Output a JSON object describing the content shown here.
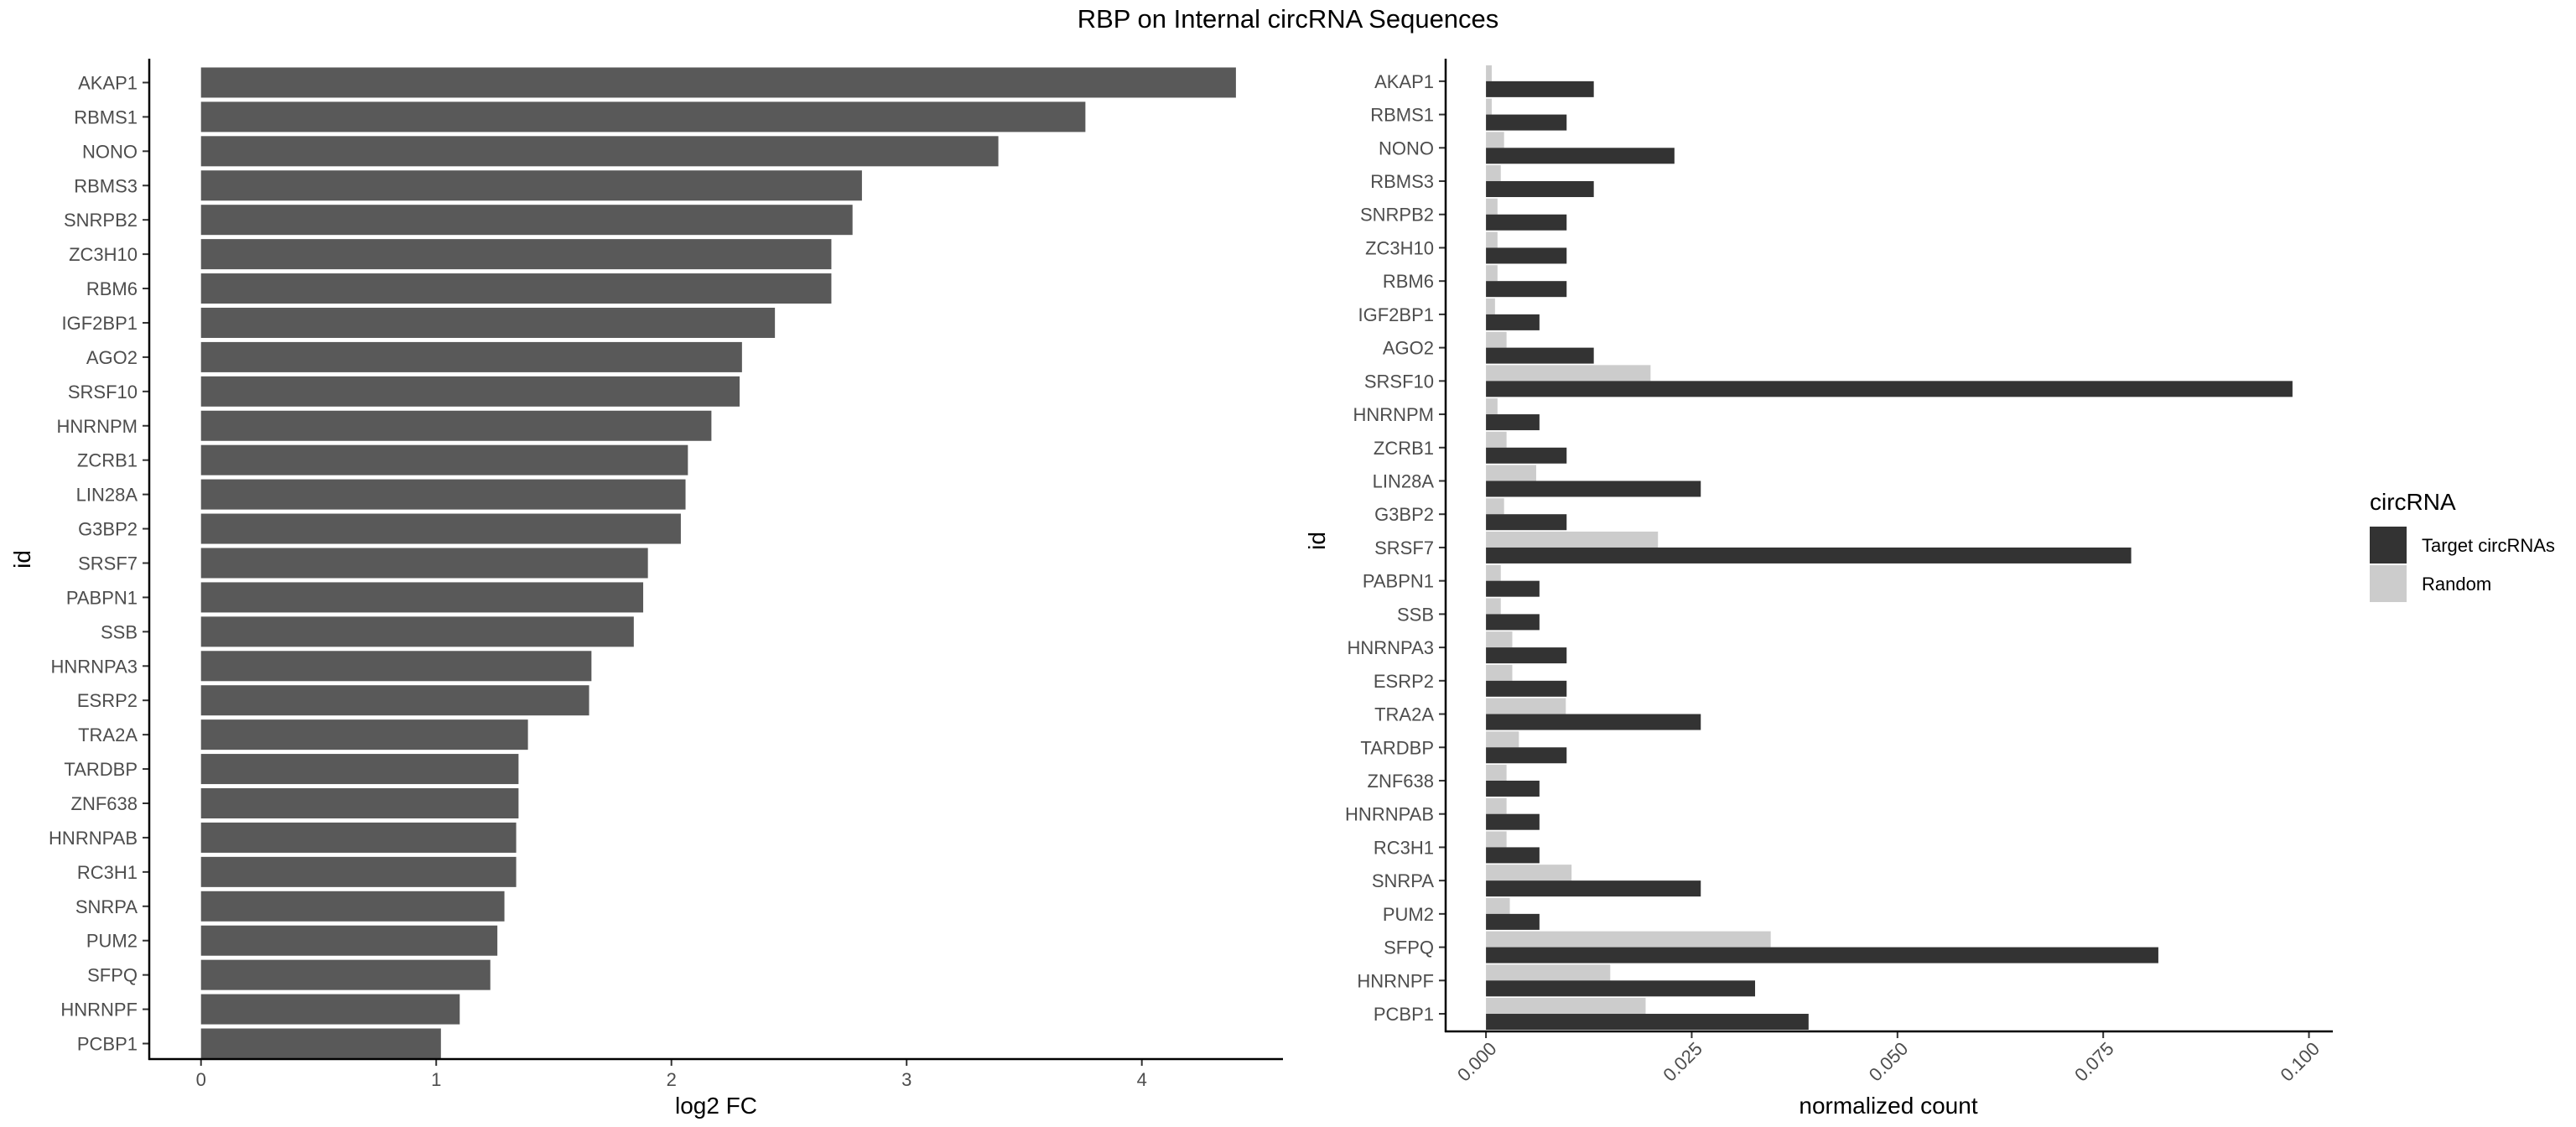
{
  "figure": {
    "title": "RBP on Internal circRNA Sequences"
  },
  "colors": {
    "bar_left": "#595959",
    "target": "#333333",
    "random": "#cccccc",
    "axis": "#000000",
    "tick_text": "#4d4d4d"
  },
  "chart_data": [
    {
      "type": "bar",
      "orientation": "horizontal",
      "categories": [
        "AKAP1",
        "RBMS1",
        "NONO",
        "RBMS3",
        "SNRPB2",
        "ZC3H10",
        "RBM6",
        "IGF2BP1",
        "AGO2",
        "SRSF10",
        "HNRNPM",
        "ZCRB1",
        "LIN28A",
        "G3BP2",
        "SRSF7",
        "PABPN1",
        "SSB",
        "HNRNPA3",
        "ESRP2",
        "TRA2A",
        "TARDBP",
        "ZNF638",
        "HNRNPAB",
        "RC3H1",
        "SNRPA",
        "PUM2",
        "SFPQ",
        "HNRNPF",
        "PCBP1"
      ],
      "values": [
        4.4,
        3.76,
        3.39,
        2.81,
        2.77,
        2.68,
        2.68,
        2.44,
        2.3,
        2.29,
        2.17,
        2.07,
        2.06,
        2.04,
        1.9,
        1.88,
        1.84,
        1.66,
        1.65,
        1.39,
        1.35,
        1.35,
        1.34,
        1.34,
        1.29,
        1.26,
        1.23,
        1.1,
        1.02
      ],
      "xlabel": "log2 FC",
      "ylabel": "id",
      "xlim": [
        -0.22,
        4.6
      ],
      "xticks": [
        "0",
        "1",
        "2",
        "3",
        "4"
      ],
      "xtick_values": [
        0,
        1,
        2,
        3,
        4
      ],
      "grid": false
    },
    {
      "type": "bar",
      "orientation": "horizontal",
      "grouped": true,
      "categories": [
        "AKAP1",
        "RBMS1",
        "NONO",
        "RBMS3",
        "SNRPB2",
        "ZC3H10",
        "RBM6",
        "IGF2BP1",
        "AGO2",
        "SRSF10",
        "HNRNPM",
        "ZCRB1",
        "LIN28A",
        "G3BP2",
        "SRSF7",
        "PABPN1",
        "SSB",
        "HNRNPA3",
        "ESRP2",
        "TRA2A",
        "TARDBP",
        "ZNF638",
        "HNRNPAB",
        "RC3H1",
        "SNRPA",
        "PUM2",
        "SFPQ",
        "HNRNPF",
        "PCBP1"
      ],
      "series": [
        {
          "name": "Target circRNAs",
          "values": [
            0.0131,
            0.0098,
            0.0229,
            0.0131,
            0.0098,
            0.0098,
            0.0098,
            0.0065,
            0.0131,
            0.098,
            0.0065,
            0.0098,
            0.0261,
            0.0098,
            0.0784,
            0.0065,
            0.0065,
            0.0098,
            0.0098,
            0.0261,
            0.0098,
            0.0065,
            0.0065,
            0.0065,
            0.0261,
            0.0065,
            0.0817,
            0.0327,
            0.0392
          ]
        },
        {
          "name": "Random",
          "values": [
            0.0007,
            0.0007,
            0.0022,
            0.0018,
            0.0014,
            0.0014,
            0.0014,
            0.0011,
            0.0025,
            0.02,
            0.0014,
            0.0025,
            0.0061,
            0.0022,
            0.0209,
            0.0018,
            0.0018,
            0.0032,
            0.0032,
            0.0097,
            0.004,
            0.0025,
            0.0025,
            0.0025,
            0.0104,
            0.0029,
            0.0346,
            0.0151,
            0.0194
          ]
        }
      ],
      "xlabel": "normalized count",
      "ylabel": "id",
      "xlim": [
        -0.0049,
        0.1029
      ],
      "xticks": [
        "0.000",
        "0.025",
        "0.050",
        "0.075",
        "0.100"
      ],
      "xtick_values": [
        0,
        0.025,
        0.05,
        0.075,
        0.1
      ],
      "legend": {
        "title": "circRNA",
        "position": "right"
      },
      "grid": false
    }
  ]
}
